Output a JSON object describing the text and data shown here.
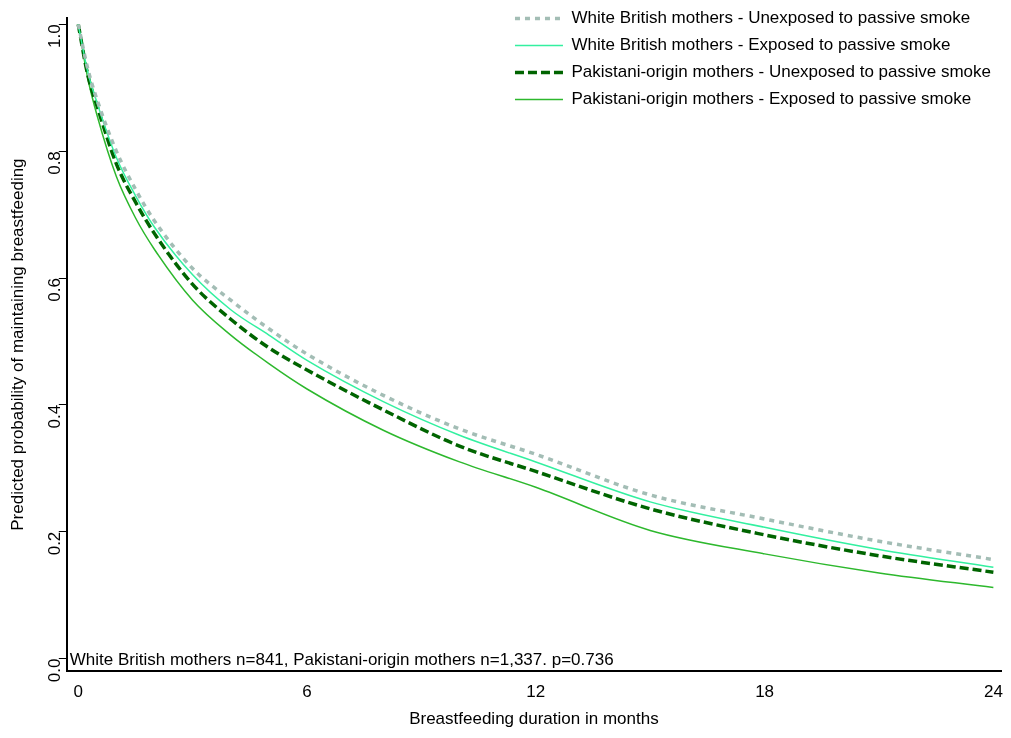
{
  "chart_data": {
    "type": "line",
    "xlabel": "Breastfeeding duration in months",
    "ylabel": "Predicted probability of maintaining breastfeeding",
    "x": [
      0,
      0.25,
      0.5,
      1,
      1.5,
      2,
      3,
      4,
      5,
      6,
      8,
      10,
      12,
      15,
      18,
      21,
      24
    ],
    "series": [
      {
        "name": "White British mothers - Unexposed to passive smoke",
        "color": "#a3bdb5",
        "line_style": "dotted",
        "values": [
          1,
          0.93,
          0.88,
          0.8,
          0.74,
          0.69,
          0.615,
          0.565,
          0.52,
          0.48,
          0.415,
          0.362,
          0.322,
          0.258,
          0.22,
          0.185,
          0.156
        ]
      },
      {
        "name": "White British mothers - Exposed to passive smoke",
        "color": "#33f0a0",
        "line_style": "solid",
        "values": [
          1,
          0.925,
          0.875,
          0.79,
          0.73,
          0.68,
          0.605,
          0.55,
          0.51,
          0.47,
          0.405,
          0.352,
          0.31,
          0.247,
          0.207,
          0.172,
          0.144
        ]
      },
      {
        "name": "Pakistani-origin mothers - Unexposed to passive smoke",
        "color": "#006400",
        "line_style": "dashed",
        "values": [
          1,
          0.92,
          0.87,
          0.78,
          0.72,
          0.67,
          0.59,
          0.535,
          0.49,
          0.455,
          0.392,
          0.335,
          0.295,
          0.236,
          0.195,
          0.162,
          0.136
        ]
      },
      {
        "name": "Pakistani-origin mothers - Exposed to passive smoke",
        "color": "#2db82d",
        "line_style": "solid",
        "values": [
          1,
          0.915,
          0.855,
          0.76,
          0.695,
          0.645,
          0.565,
          0.51,
          0.465,
          0.425,
          0.36,
          0.31,
          0.27,
          0.202,
          0.165,
          0.135,
          0.112
        ]
      }
    ],
    "xlim": [
      -0.3,
      24.2
    ],
    "ylim": [
      -0.02,
      1.01
    ],
    "xticks": [
      0,
      6,
      12,
      18,
      24
    ],
    "yticks": [
      {
        "value": 0,
        "label": "0.0"
      },
      {
        "value": 0.2,
        "label": "0.2"
      },
      {
        "value": 0.4,
        "label": "0.4"
      },
      {
        "value": 0.6,
        "label": "0.6"
      },
      {
        "value": 0.8,
        "label": "0.8"
      },
      {
        "value": 1,
        "label": "1.0"
      }
    ],
    "grid": false,
    "legend": "top right",
    "marker": "none",
    "annotations": [
      "White British mothers n=841, Pakistani-origin mothers n=1,337. p=0.736"
    ]
  }
}
